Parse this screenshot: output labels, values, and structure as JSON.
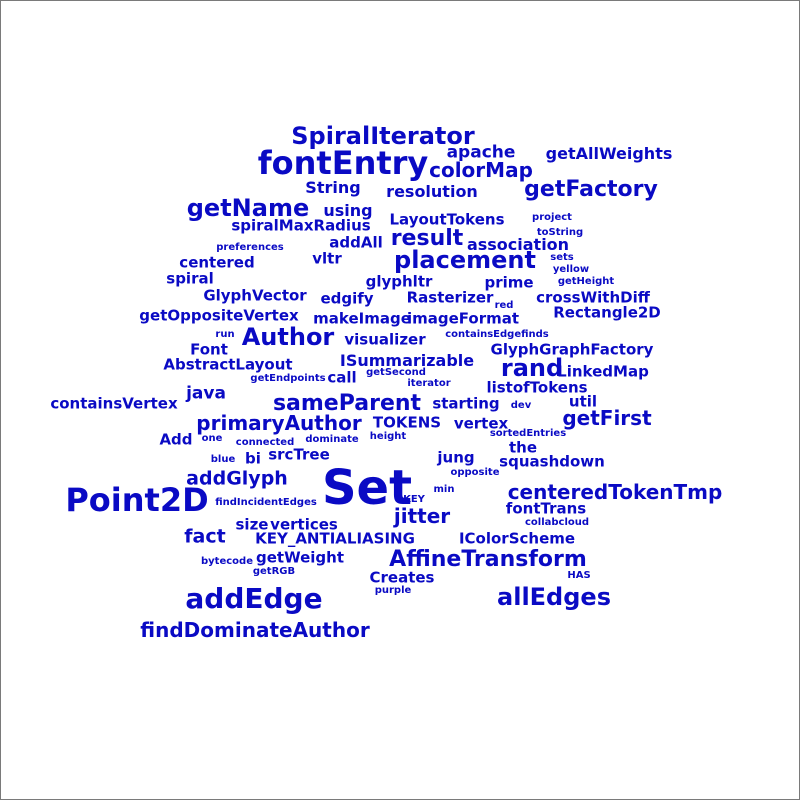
{
  "colors": {
    "word": "#0a0ac4",
    "background": "#ffffff",
    "frame": "#7a7a7a"
  },
  "words": [
    "SpiralIterator",
    "fontEntry",
    "apache",
    "getAllWeights",
    "colorMap",
    "String",
    "resolution",
    "getFactory",
    "getName",
    "using",
    "LayoutTokens",
    "project",
    "spiralMaxRadius",
    "toString",
    "result",
    "addAll",
    "association",
    "preferences",
    "vltr",
    "placement",
    "sets",
    "centered",
    "yellow",
    "spiral",
    "glyphltr",
    "prime",
    "getHeight",
    "GlyphVector",
    "edgify",
    "Rasterizer",
    "red",
    "crossWithDiff",
    "getOppositeVertex",
    "makeImage",
    "imageFormat",
    "Rectangle2D",
    "run",
    "Author",
    "visualizer",
    "containsEdgefinds",
    "Font",
    "GlyphGraphFactory",
    "ISummarizable",
    "AbstractLayout",
    "rand",
    "getSecond",
    "LinkedMap",
    "getEndpoints",
    "call",
    "iterator",
    "listofTokens",
    "java",
    "containsVertex",
    "sameParent",
    "starting",
    "util",
    "dev",
    "getFirst",
    "primaryAuthor",
    "TOKENS",
    "vertex",
    "sortedEntries",
    "Add",
    "one",
    "connected",
    "dominate",
    "height",
    "the",
    "bi",
    "srcTree",
    "blue",
    "jung",
    "squashdown",
    "addGlyph",
    "opposite",
    "Set",
    "Point2D",
    "KEY",
    "centeredTokenTmp",
    "min",
    "findIncidentEdges",
    "jitter",
    "fontTrans",
    "size",
    "vertices",
    "collabcloud",
    "fact",
    "KEY_ANTIALIASING",
    "IColorScheme",
    "getWeight",
    "AffineTransform",
    "bytecode",
    "getRGB",
    "Creates",
    "HAS",
    "purple",
    "addEdge",
    "allEdges",
    "findDominateAuthor"
  ]
}
